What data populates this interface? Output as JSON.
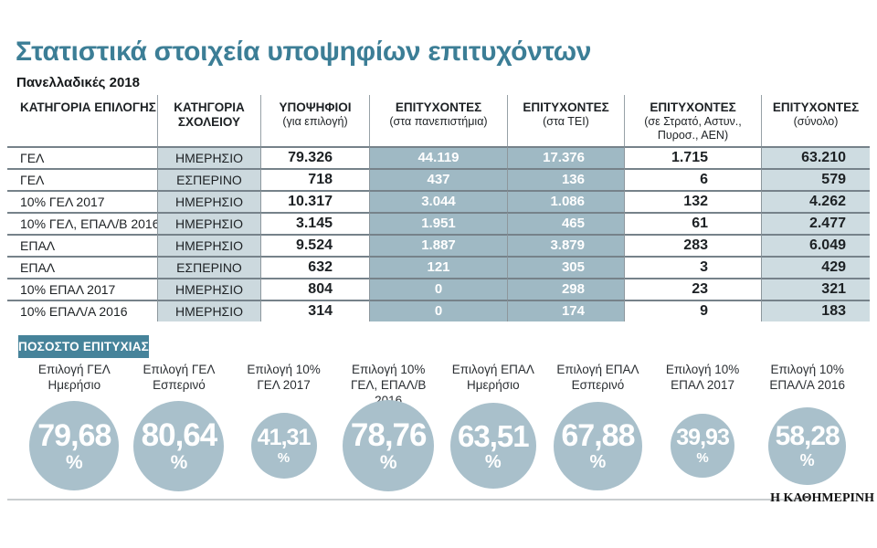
{
  "page": {
    "title": "Στατιστικά στοιχεία υποψηφίων επιτυχόντων",
    "subtitle": "Πανελλαδικές 2018",
    "brand": "Η ΚΑΘΗΜΕΡΙΝΗ"
  },
  "colors": {
    "accent_teal": "#3c7e96",
    "badge_teal": "#46839a",
    "band_light": "#ccd9de",
    "band_dark": "#9fb9c4",
    "band_total": "#cedce1",
    "circle": "#a9c0cb"
  },
  "table": {
    "columns": [
      {
        "title": "ΚΑΤΗΓΟΡΙΑ ΕΠΙΛΟΓΗΣ",
        "sub": ""
      },
      {
        "title": "ΚΑΤΗΓΟΡΙΑ ΣΧΟΛΕΙΟΥ",
        "sub": ""
      },
      {
        "title": "ΥΠΟΨΗΦΙΟΙ",
        "sub": "(για επιλογή)"
      },
      {
        "title": "ΕΠΙΤΥΧΟΝΤΕΣ",
        "sub": "(στα πανεπιστήμια)"
      },
      {
        "title": "ΕΠΙΤΥΧΟΝΤΕΣ",
        "sub": "(στα ΤΕΙ)"
      },
      {
        "title": "ΕΠΙΤΥΧΟΝΤΕΣ",
        "sub": "(σε Στρατό, Αστυν., Πυροσ., ΑΕΝ)"
      },
      {
        "title": "ΕΠΙΤΥΧΟΝΤΕΣ",
        "sub": "(σύνολο)"
      }
    ],
    "rows": [
      [
        "ΓΕΛ",
        "ΗΜΕΡΗΣΙΟ",
        "79.326",
        "44.119",
        "17.376",
        "1.715",
        "63.210"
      ],
      [
        "ΓΕΛ",
        "ΕΣΠΕΡΙΝΟ",
        "718",
        "437",
        "136",
        "6",
        "579"
      ],
      [
        "10% ΓΕΛ 2017",
        "ΗΜΕΡΗΣΙΟ",
        "10.317",
        "3.044",
        "1.086",
        "132",
        "4.262"
      ],
      [
        "10% ΓΕΛ, ΕΠΑΛ/Β 2016",
        "ΗΜΕΡΗΣΙΟ",
        "3.145",
        "1.951",
        "465",
        "61",
        "2.477"
      ],
      [
        "ΕΠΑΛ",
        "ΗΜΕΡΗΣΙΟ",
        "9.524",
        "1.887",
        "3.879",
        "283",
        "6.049"
      ],
      [
        "ΕΠΑΛ",
        "ΕΣΠΕΡΙΝΟ",
        "632",
        "121",
        "305",
        "3",
        "429"
      ],
      [
        "10% ΕΠΑΛ 2017",
        "ΗΜΕΡΗΣΙΟ",
        "804",
        "0",
        "298",
        "23",
        "321"
      ],
      [
        "10% ΕΠΑΛ/Α 2016",
        "ΗΜΕΡΗΣΙΟ",
        "314",
        "0",
        "174",
        "9",
        "183"
      ]
    ]
  },
  "success": {
    "badge": "ΠΟΣΟΣΤΟ ΕΠΙΤΥΧΙΑΣ",
    "unit": "%",
    "items": [
      {
        "label": "Επιλογή ΓΕΛ\nΗμερήσιο",
        "value": "79,68",
        "diameter": 98
      },
      {
        "label": "Επιλογή ΓΕΛ\nΕσπερινό",
        "value": "80,64",
        "diameter": 99
      },
      {
        "label": "Επιλογή 10%\nΓΕΛ 2017",
        "value": "41,31",
        "diameter": 72
      },
      {
        "label": "Επιλογή 10%\nΓΕΛ, ΕΠΑΛ/Β 2016",
        "value": "78,76",
        "diameter": 100
      },
      {
        "label": "Επιλογή ΕΠΑΛ\nΗμερήσιο",
        "value": "63,51",
        "diameter": 94
      },
      {
        "label": "Επιλογή ΕΠΑΛ\nΕσπερινό",
        "value": "67,88",
        "diameter": 97
      },
      {
        "label": "Επιλογή 10%\nΕΠΑΛ 2017",
        "value": "39,93",
        "diameter": 70
      },
      {
        "label": "Επιλογή 10%\nΕΠΑΛ/Α 2016",
        "value": "58,28",
        "diameter": 85
      }
    ]
  },
  "chart_data": [
    {
      "type": "table",
      "title": "Στατιστικά στοιχεία υποψηφίων επιτυχόντων",
      "subtitle": "Πανελλαδικές 2018",
      "columns": [
        "ΚΑΤΗΓΟΡΙΑ ΕΠΙΛΟΓΗΣ",
        "ΚΑΤΗΓΟΡΙΑ ΣΧΟΛΕΙΟΥ",
        "ΥΠΟΨΗΦΙΟΙ (για επιλογή)",
        "ΕΠΙΤΥΧΟΝΤΕΣ (στα πανεπιστήμια)",
        "ΕΠΙΤΥΧΟΝΤΕΣ (στα ΤΕΙ)",
        "ΕΠΙΤΥΧΟΝΤΕΣ (σε Στρατό, Αστυν., Πυροσ., ΑΕΝ)",
        "ΕΠΙΤΥΧΟΝΤΕΣ (σύνολο)"
      ],
      "rows": [
        [
          "ΓΕΛ",
          "ΗΜΕΡΗΣΙΟ",
          79326,
          44119,
          17376,
          1715,
          63210
        ],
        [
          "ΓΕΛ",
          "ΕΣΠΕΡΙΝΟ",
          718,
          437,
          136,
          6,
          579
        ],
        [
          "10% ΓΕΛ 2017",
          "ΗΜΕΡΗΣΙΟ",
          10317,
          3044,
          1086,
          132,
          4262
        ],
        [
          "10% ΓΕΛ, ΕΠΑΛ/Β 2016",
          "ΗΜΕΡΗΣΙΟ",
          3145,
          1951,
          465,
          61,
          2477
        ],
        [
          "ΕΠΑΛ",
          "ΗΜΕΡΗΣΙΟ",
          9524,
          1887,
          3879,
          283,
          6049
        ],
        [
          "ΕΠΑΛ",
          "ΕΣΠΕΡΙΝΟ",
          632,
          121,
          305,
          3,
          429
        ],
        [
          "10% ΕΠΑΛ 2017",
          "ΗΜΕΡΗΣΙΟ",
          804,
          0,
          298,
          23,
          321
        ],
        [
          "10% ΕΠΑΛ/Α 2016",
          "ΗΜΕΡΗΣΙΟ",
          314,
          0,
          174,
          9,
          183
        ]
      ]
    },
    {
      "type": "scatter",
      "title": "ΠΟΣΟΣΤΟ ΕΠΙΤΥΧΙΑΣ",
      "encoding": "proportional circles, area ~ value",
      "categories": [
        "Επιλογή ΓΕΛ Ημερήσιο",
        "Επιλογή ΓΕΛ Εσπερινό",
        "Επιλογή 10% ΓΕΛ 2017",
        "Επιλογή 10% ΓΕΛ, ΕΠΑΛ/Β 2016",
        "Επιλογή ΕΠΑΛ Ημερήσιο",
        "Επιλογή ΕΠΑΛ Εσπερινό",
        "Επιλογή 10% ΕΠΑΛ 2017",
        "Επιλογή 10% ΕΠΑΛ/Α 2016"
      ],
      "values": [
        79.68,
        80.64,
        41.31,
        78.76,
        63.51,
        67.88,
        39.93,
        58.28
      ],
      "unit": "%"
    }
  ]
}
